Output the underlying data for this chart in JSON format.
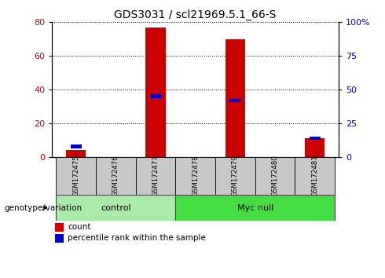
{
  "title": "GDS3031 / scl21969.5.1_66-S",
  "samples": [
    "GSM172475",
    "GSM172476",
    "GSM172477",
    "GSM172478",
    "GSM172479",
    "GSM172480",
    "GSM172481"
  ],
  "count_values": [
    4,
    0,
    77,
    0,
    70,
    0,
    11
  ],
  "percentile_values": [
    8,
    0,
    45,
    0,
    42,
    0,
    14
  ],
  "ylim_left": [
    0,
    80
  ],
  "ylim_right": [
    0,
    100
  ],
  "yticks_left": [
    0,
    20,
    40,
    60,
    80
  ],
  "yticks_right": [
    0,
    25,
    50,
    75,
    100
  ],
  "ytick_labels_right": [
    "0",
    "25",
    "50",
    "75",
    "100%"
  ],
  "bar_color": "#cc0000",
  "percentile_color": "#0000cc",
  "genotype_label": "genotype/variation",
  "legend_count_label": "count",
  "legend_percentile_label": "percentile rank within the sample",
  "tick_label_color_left": "#cc0000",
  "tick_label_color_right": "#0000cc",
  "background_color": "#ffffff",
  "plot_bg_color": "#ffffff",
  "grid_color": "#000000",
  "sample_bg_color": "#c8c8c8",
  "group_configs": [
    {
      "label": "control",
      "start": 0,
      "end": 2,
      "color": "#aaeaaa"
    },
    {
      "label": "Myc null",
      "start": 3,
      "end": 6,
      "color": "#44dd44"
    }
  ]
}
